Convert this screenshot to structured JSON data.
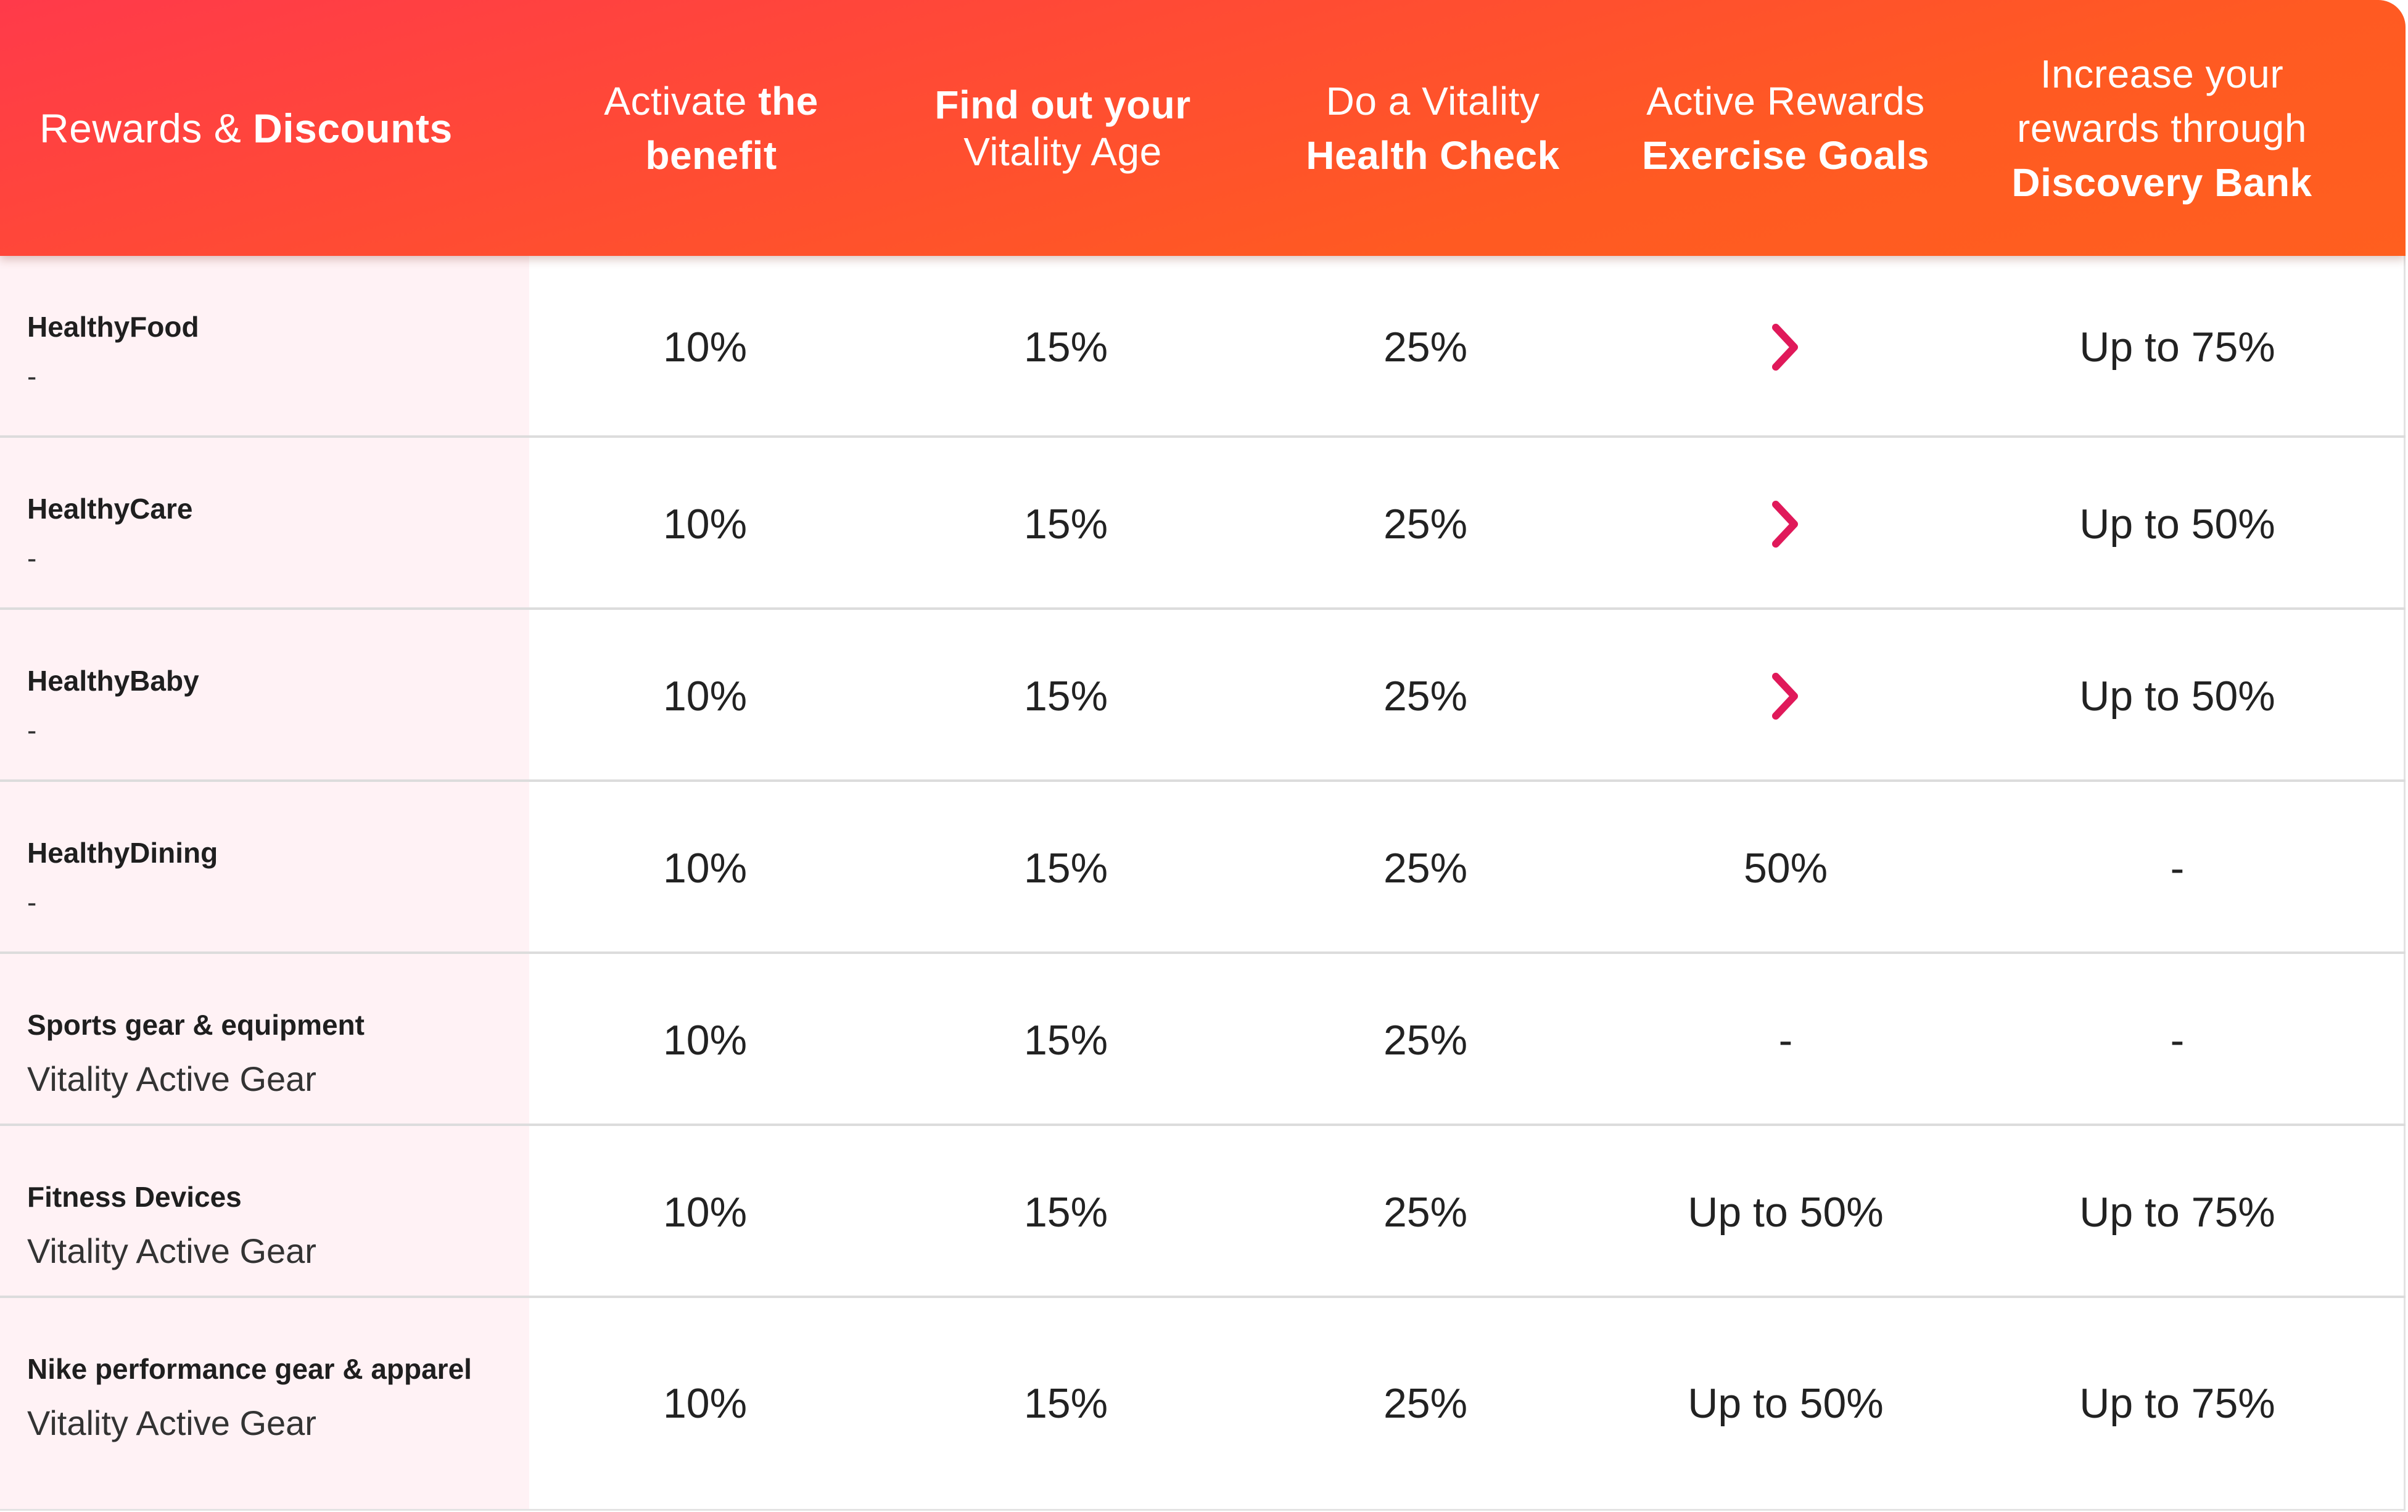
{
  "header": {
    "corner": {
      "normal": "Rewards & ",
      "bold": "Discounts"
    },
    "columns": [
      {
        "l1": "Activate ",
        "l1b": "the",
        "l2": "",
        "l2b": "benefit",
        "l3": "",
        "l3b": ""
      },
      {
        "l1": "",
        "l1b": "Find out your",
        "l2": "Vitality Age",
        "l2b": "",
        "l3": "",
        "l3b": ""
      },
      {
        "l1": "Do a Vitality",
        "l1b": "",
        "l2": "",
        "l2b": "Health Check",
        "l3": "",
        "l3b": ""
      },
      {
        "l1": "Active Rewards",
        "l1b": "",
        "l2": "",
        "l2b": "Exercise Goals",
        "l3": "",
        "l3b": ""
      },
      {
        "l1": "Increase your",
        "l1b": "",
        "l2": "rewards through",
        "l2b": "",
        "l3": "",
        "l3b": "Discovery Bank"
      }
    ]
  },
  "rows": [
    {
      "name": "HealthyFood",
      "sub": "-",
      "values": [
        "10%",
        "15%",
        "25%",
        "",
        "Up to 75%"
      ],
      "chevron": true
    },
    {
      "name": "HealthyCare",
      "sub": "-",
      "values": [
        "10%",
        "15%",
        "25%",
        "",
        "Up to 50%"
      ],
      "chevron": true
    },
    {
      "name": "HealthyBaby",
      "sub": "-",
      "values": [
        "10%",
        "15%",
        "25%",
        "",
        "Up to 50%"
      ],
      "chevron": true
    },
    {
      "name": "HealthyDining",
      "sub": "-",
      "values": [
        "10%",
        "15%",
        "25%",
        "50%",
        "-"
      ],
      "chevron": false
    },
    {
      "name": "Sports gear & equipment",
      "sub": "Vitality Active Gear",
      "values": [
        "10%",
        "15%",
        "25%",
        "-",
        "-"
      ],
      "chevron": false
    },
    {
      "name": " Fitness Devices",
      "sub": "Vitality Active Gear",
      "values": [
        "10%",
        "15%",
        "25%",
        "Up to 50%",
        "Up to 75%"
      ],
      "chevron": false
    },
    {
      "name": "Nike performance gear & apparel",
      "sub": "Vitality Active Gear",
      "values": [
        "10%",
        "15%",
        "25%",
        "Up to 50%",
        "Up to 75%"
      ],
      "chevron": false
    }
  ],
  "colors": {
    "header_start": "#ff3a4a",
    "header_end": "#ff5f1f",
    "label_bg": "#fff2f5",
    "chevron": "#e0195a"
  },
  "icons": {
    "chevron": "chevron-right-icon"
  }
}
